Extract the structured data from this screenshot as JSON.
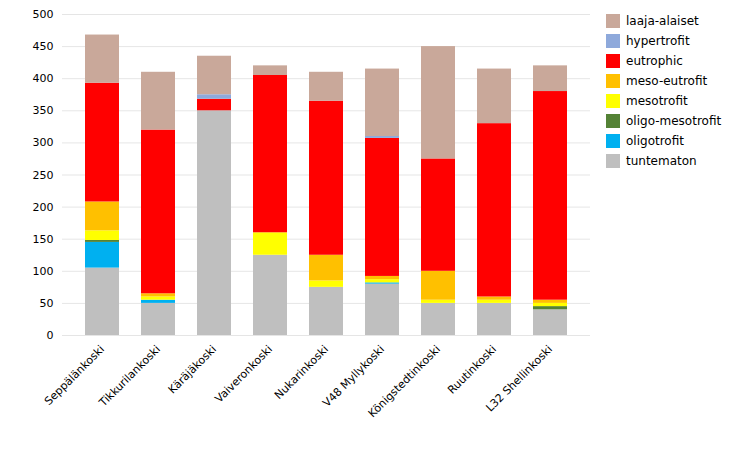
{
  "chart_data": {
    "type": "bar",
    "stacked": true,
    "categories": [
      "Seppälänkoski",
      "Tikkurilankoski",
      "Käräjäkoski",
      "Vaiveronkoski",
      "Nukarinkoski",
      "V48 Myllykoski",
      "Königstedtinkoski",
      "Ruutinkoski",
      "L32 Shellinkoski"
    ],
    "series": [
      {
        "name": "tuntematon",
        "color": "#bfbfbf",
        "values": [
          105,
          50,
          350,
          125,
          75,
          80,
          50,
          50,
          40
        ]
      },
      {
        "name": "oligotrofit",
        "color": "#00b0f0",
        "values": [
          40,
          5,
          0,
          0,
          0,
          2,
          0,
          0,
          0
        ]
      },
      {
        "name": "oligo-mesotrofit",
        "color": "#548235",
        "values": [
          3,
          0,
          0,
          0,
          0,
          0,
          0,
          0,
          5
        ]
      },
      {
        "name": "mesotrofit",
        "color": "#ffff00",
        "values": [
          15,
          5,
          0,
          35,
          10,
          5,
          5,
          5,
          5
        ]
      },
      {
        "name": "meso-eutrofit",
        "color": "#ffc000",
        "values": [
          45,
          5,
          0,
          0,
          40,
          5,
          45,
          5,
          5
        ]
      },
      {
        "name": "eutrophic",
        "color": "#ff0000",
        "values": [
          185,
          255,
          18,
          245,
          240,
          215,
          175,
          270,
          325
        ]
      },
      {
        "name": "hypertrofit",
        "color": "#8ea9db",
        "values": [
          0,
          0,
          7,
          0,
          0,
          3,
          0,
          0,
          0
        ]
      },
      {
        "name": "laaja-alaiset",
        "color": "#c9a89a",
        "values": [
          75,
          90,
          60,
          15,
          45,
          105,
          175,
          85,
          40
        ]
      }
    ],
    "ylim": [
      0,
      500
    ],
    "yticks": [
      0,
      50,
      100,
      150,
      200,
      250,
      300,
      350,
      400,
      450,
      500
    ],
    "grid": true,
    "legend": "right"
  }
}
